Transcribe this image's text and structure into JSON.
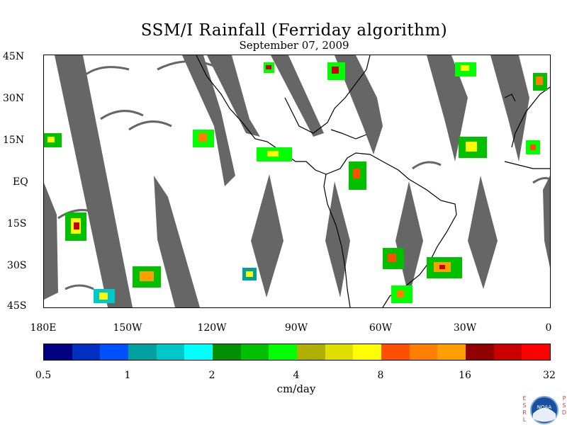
{
  "title": "SSM/I Rainfall (Ferriday algorithm)",
  "subtitle": "September 07, 2009",
  "lat_labels": [
    "45N",
    "30N",
    "15N",
    "EQ",
    "15S",
    "30S",
    "45S"
  ],
  "lon_labels": [
    "180E",
    "150W",
    "120W",
    "90W",
    "60W",
    "30W",
    "0"
  ],
  "colorbar": {
    "labels": [
      "0.5",
      "1",
      "2",
      "4",
      "8",
      "16",
      "32"
    ],
    "units": "cm/day",
    "colors": [
      "#000080",
      "#0030c0",
      "#0050ff",
      "#00a0a0",
      "#00c8c8",
      "#00ffff",
      "#009000",
      "#00c000",
      "#00ff00",
      "#b0b000",
      "#e0e000",
      "#ffff00",
      "#ff5000",
      "#ff8000",
      "#ffa000",
      "#900000",
      "#c80000",
      "#ff0000"
    ]
  },
  "credit": {
    "left_letters": "ESRL",
    "right_letters": "PSD",
    "logo_text": "NOAA"
  },
  "colors": {
    "swath_gap": "#666666",
    "coastline": "#000000",
    "background": "#ffffff"
  }
}
